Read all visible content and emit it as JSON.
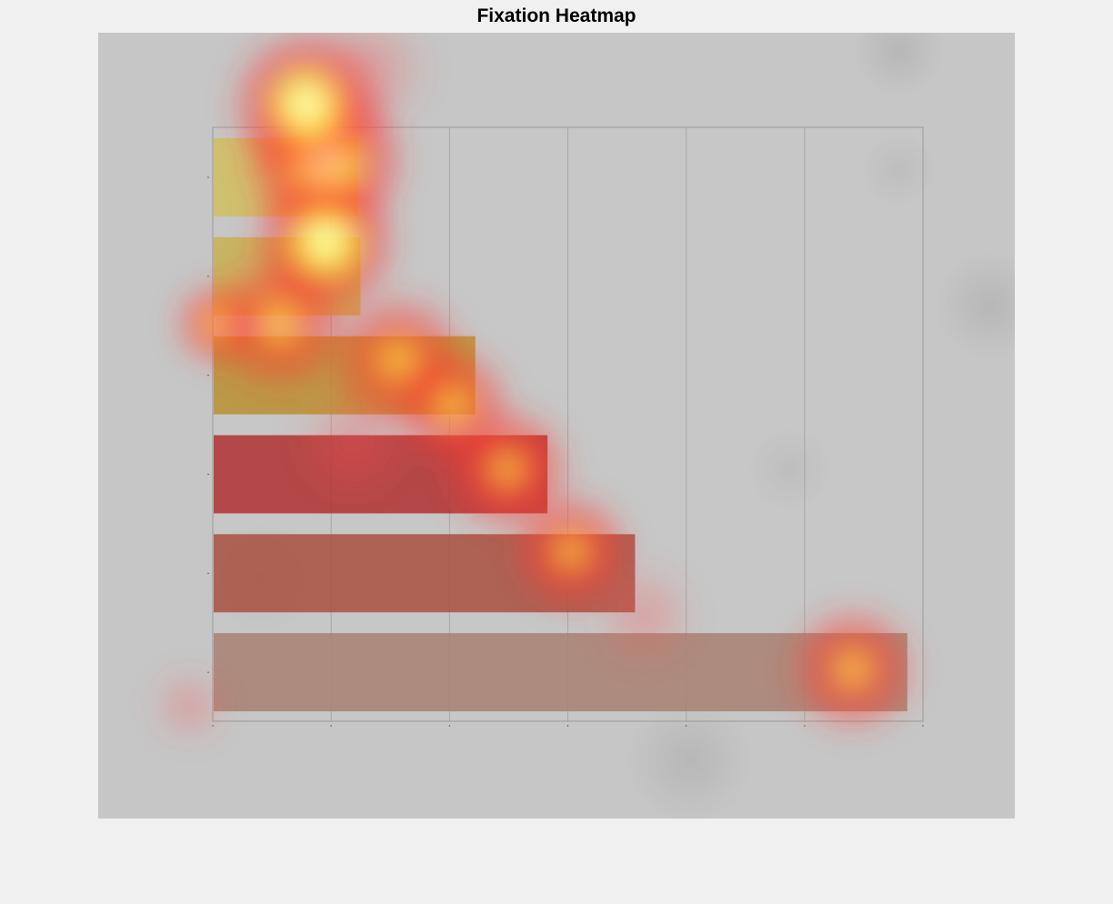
{
  "title": "Fixation Heatmap",
  "colors": {
    "page_background": "#f0f0f0",
    "figure_background": "#c6c6c6",
    "plot_background": "#c9c9c9",
    "grid": "#9a9a9a",
    "heat_low": "#ff3b3b",
    "heat_mid": "#ffff33",
    "heat_high": "#ffffff"
  },
  "chart_data": {
    "type": "bar",
    "orientation": "horizontal",
    "title": "",
    "xlabel": "",
    "ylabel": "",
    "categories": [
      "",
      "",
      "",
      "",
      "",
      ""
    ],
    "values": [
      1.22,
      1.24,
      2.21,
      2.82,
      3.56,
      5.86
    ],
    "xlim": [
      0,
      6
    ],
    "x_ticks": [
      0,
      1,
      2,
      3,
      4,
      5,
      6
    ],
    "x_tick_labels": [
      "",
      "",
      "",
      "",
      "",
      "",
      ""
    ],
    "grid": "vertical",
    "legend": "none",
    "bar_colors": [
      "#d0c060",
      "#c8b050",
      "#b89030",
      "#b03030",
      "#a85040",
      "#a88070"
    ],
    "overlay": {
      "type": "heatmap",
      "label": "Fixation Heatmap"
    }
  }
}
